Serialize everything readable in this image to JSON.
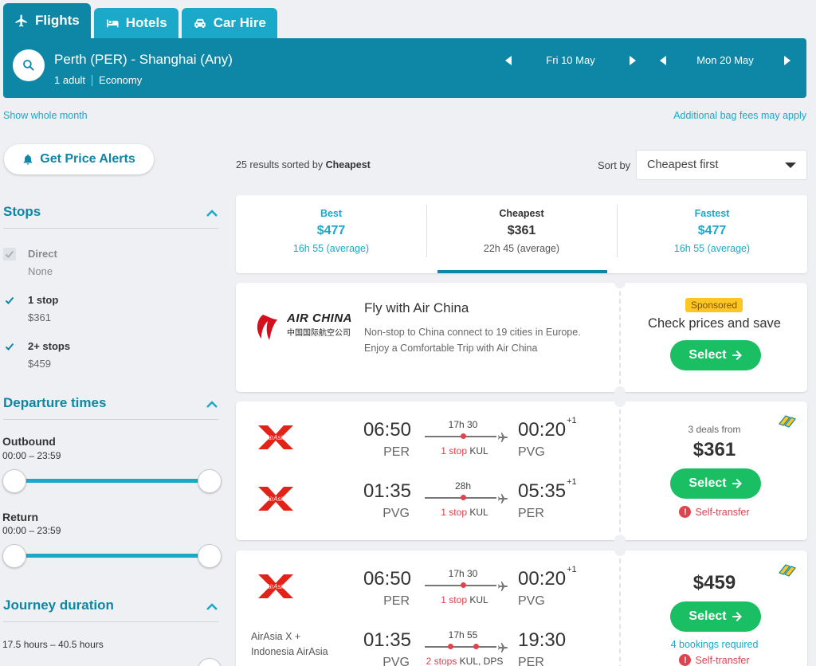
{
  "tabs": [
    {
      "label": "Flights",
      "icon": "plane-icon",
      "active": true
    },
    {
      "label": "Hotels",
      "icon": "bed-icon",
      "active": false
    },
    {
      "label": "Car Hire",
      "icon": "car-icon",
      "active": false
    }
  ],
  "search": {
    "route": "Perth (PER) - Shanghai (Any)",
    "passengers": "1 adult",
    "cabin": "Economy",
    "depart_date": "Fri 10 May",
    "return_date": "Mon 20 May"
  },
  "links": {
    "show_month": "Show whole month",
    "bag_fees": "Additional bag fees may apply"
  },
  "sidebar": {
    "alerts_label": "Get Price Alerts",
    "stops_heading": "Stops",
    "stops": [
      {
        "label": "Direct",
        "sub": "None",
        "checked": true,
        "disabled": true
      },
      {
        "label": "1 stop",
        "sub": "$361",
        "checked": true,
        "disabled": false
      },
      {
        "label": "2+ stops",
        "sub": "$459",
        "checked": true,
        "disabled": false
      }
    ],
    "departure_heading": "Departure times",
    "outbound_label": "Outbound",
    "outbound_range": "00:00 – 23:59",
    "return_label": "Return",
    "return_range": "00:00 – 23:59",
    "journey_heading": "Journey duration",
    "journey_range": "17.5 hours – 40.5 hours"
  },
  "results": {
    "count_text": "25 results sorted by",
    "sorted_by": "Cheapest",
    "sort_label": "Sort by",
    "sort_value": "Cheapest first"
  },
  "summary": [
    {
      "title": "Best",
      "price": "$477",
      "duration": "16h 55 (average)",
      "active": false
    },
    {
      "title": "Cheapest",
      "price": "$361",
      "duration": "22h 45 (average)",
      "active": true
    },
    {
      "title": "Fastest",
      "price": "$477",
      "duration": "16h 55 (average)",
      "active": false
    }
  ],
  "ad": {
    "logo_text": "AIR CHINA",
    "logo_sub": "中国国际航空公司",
    "title": "Fly with Air China",
    "text_line1": "Non-stop to China connect to 19 cities in Europe.",
    "text_line2": "Enjoy a Comfortable Trip with Air China",
    "sponsored": "Sponsored",
    "cta": "Check prices and save",
    "select": "Select"
  },
  "offers": [
    {
      "legs": [
        {
          "dep_time": "06:50",
          "dep_code": "PER",
          "arr_time": "00:20",
          "arr_plus": "+1",
          "arr_code": "PVG",
          "duration": "17h 30",
          "stops_red": "1 stop",
          "stops_via": "KUL",
          "logo_text": "AirAsia"
        },
        {
          "dep_time": "01:35",
          "dep_code": "PVG",
          "arr_time": "05:35",
          "arr_plus": "+1",
          "arr_code": "PER",
          "duration": "28h",
          "stops_red": "1 stop",
          "stops_via": "KUL",
          "logo_text": "AirAsia"
        }
      ],
      "deals": "3 deals from",
      "price": "$361",
      "select": "Select",
      "note": "Self-transfer"
    },
    {
      "legs": [
        {
          "dep_time": "06:50",
          "dep_code": "PER",
          "arr_time": "00:20",
          "arr_plus": "+1",
          "arr_code": "PVG",
          "duration": "17h 30",
          "stops_red": "1 stop",
          "stops_via": "KUL",
          "logo_text": "AirAsia"
        },
        {
          "airline_name": "AirAsia X + Indonesia AirAsia",
          "dep_time": "01:35",
          "dep_code": "PVG",
          "arr_time": "19:30",
          "arr_plus": "",
          "arr_code": "PER",
          "duration": "17h 55",
          "stops_red": "2 stops",
          "stops_via": "KUL, DPS"
        }
      ],
      "price": "$459",
      "select": "Select",
      "bookings": "4 bookings required",
      "note": "Self-transfer"
    }
  ],
  "colors": {
    "primary": "#0e87a6",
    "accent": "#1aa9c9",
    "select_green": "#1bbf63",
    "alert_red": "#e0424e",
    "sponsored_yellow": "#fec624"
  }
}
